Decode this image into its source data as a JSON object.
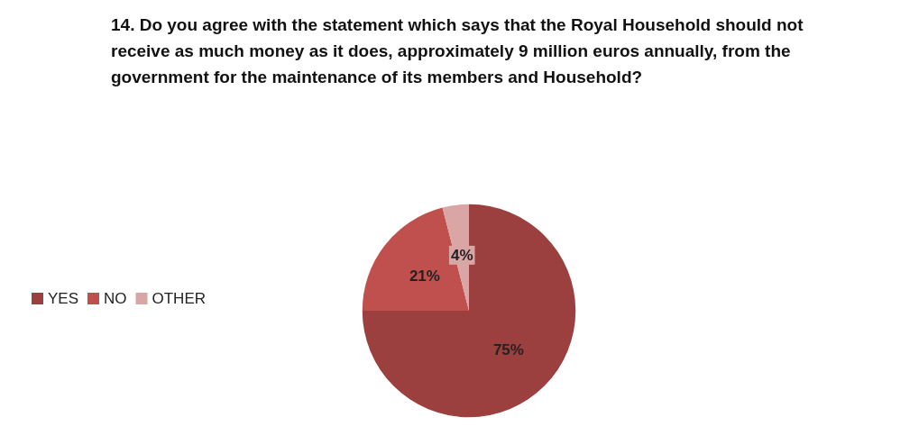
{
  "chart_data": {
    "type": "pie",
    "title": "14. Do you agree with the statement which says that the Royal Household should not receive as much money as it does, approximately 9 million euros annually, from the government for the maintenance of its members and Household?",
    "categories": [
      "YES",
      "NO",
      "OTHER"
    ],
    "values": [
      75,
      21,
      4
    ],
    "colors": [
      "#9b403e",
      "#c0504d",
      "#d9a6a5"
    ],
    "value_labels": [
      "75%",
      "21%",
      "4%"
    ],
    "legend": "left"
  }
}
